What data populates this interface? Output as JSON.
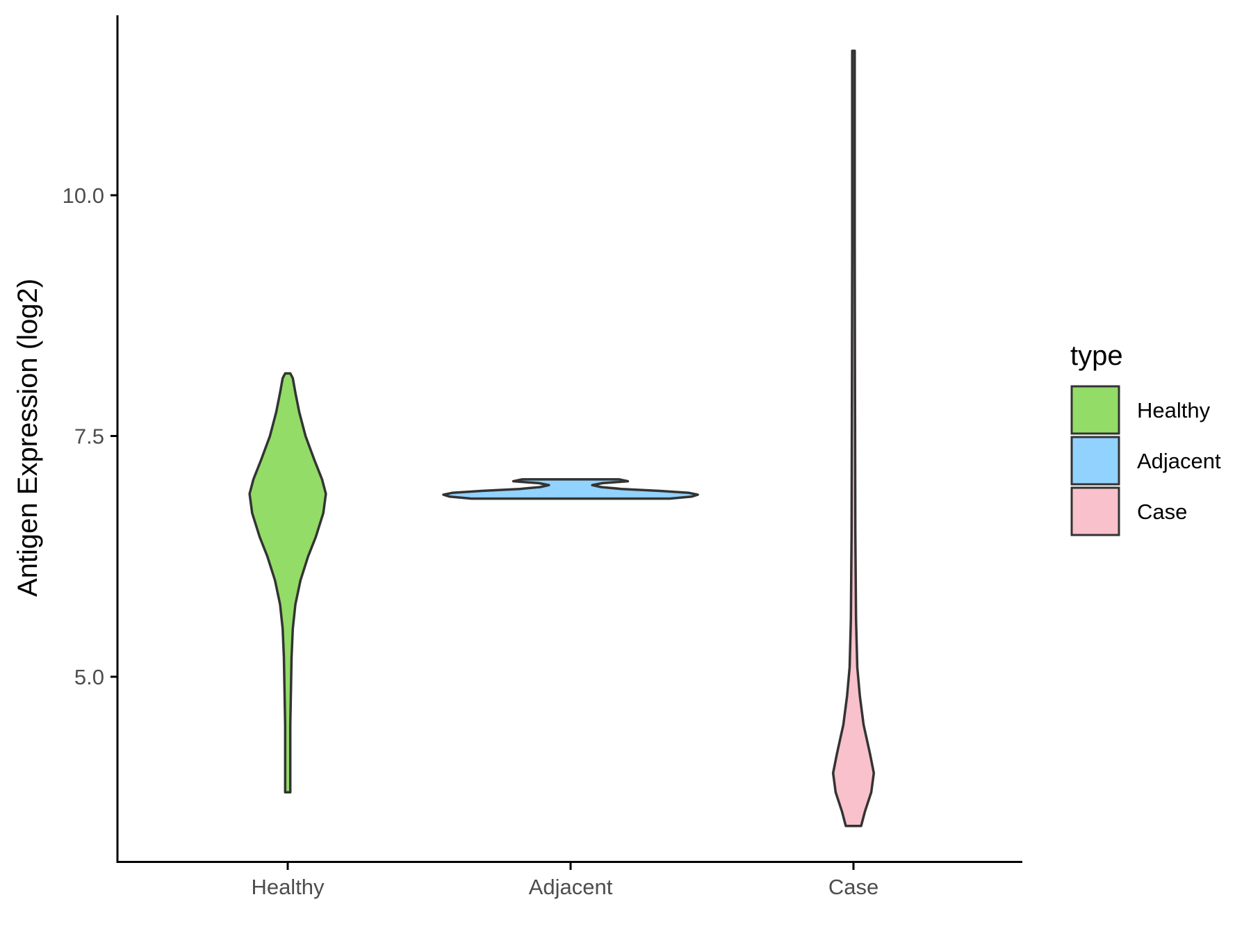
{
  "chart_data": {
    "type": "violin",
    "ylabel": "Antigen Expression (log2)",
    "ylim": [
      3.1,
      11.9
    ],
    "yticks": [
      5.0,
      7.5,
      10.0
    ],
    "ytick_labels": [
      "5.0",
      "7.5",
      "10.0"
    ],
    "categories": [
      "Healthy",
      "Adjacent",
      "Case"
    ],
    "grid": false,
    "legend": {
      "title": "type",
      "position": "right",
      "entries": [
        "Healthy",
        "Adjacent",
        "Case"
      ]
    },
    "series": [
      {
        "category": "Healthy",
        "color": "#93dc67",
        "min": 3.8,
        "max": 8.15,
        "density_profile": [
          [
            3.8,
            0.02
          ],
          [
            4.5,
            0.02
          ],
          [
            5.2,
            0.03
          ],
          [
            5.5,
            0.04
          ],
          [
            5.75,
            0.06
          ],
          [
            6.0,
            0.1
          ],
          [
            6.25,
            0.16
          ],
          [
            6.45,
            0.22
          ],
          [
            6.7,
            0.28
          ],
          [
            6.9,
            0.3
          ],
          [
            7.05,
            0.27
          ],
          [
            7.25,
            0.21
          ],
          [
            7.5,
            0.14
          ],
          [
            7.75,
            0.09
          ],
          [
            7.95,
            0.06
          ],
          [
            8.1,
            0.04
          ],
          [
            8.15,
            0.02
          ]
        ]
      },
      {
        "category": "Adjacent",
        "color": "#92d2fe",
        "min": 6.85,
        "max": 7.05,
        "density_profile": [
          [
            6.85,
            0.78
          ],
          [
            6.87,
            0.95
          ],
          [
            6.89,
            1.0
          ],
          [
            6.91,
            0.93
          ],
          [
            6.93,
            0.7
          ],
          [
            6.95,
            0.4
          ],
          [
            6.97,
            0.24
          ],
          [
            6.99,
            0.17
          ],
          [
            7.01,
            0.25
          ],
          [
            7.03,
            0.45
          ],
          [
            7.05,
            0.38
          ]
        ]
      },
      {
        "category": "Case",
        "color": "#f8c1cb",
        "min": 3.45,
        "max": 11.5,
        "density_profile": [
          [
            3.45,
            0.06
          ],
          [
            3.6,
            0.09
          ],
          [
            3.8,
            0.14
          ],
          [
            4.0,
            0.16
          ],
          [
            4.2,
            0.13
          ],
          [
            4.5,
            0.08
          ],
          [
            4.8,
            0.05
          ],
          [
            5.1,
            0.03
          ],
          [
            5.6,
            0.02
          ],
          [
            6.5,
            0.015
          ],
          [
            8.0,
            0.012
          ],
          [
            9.5,
            0.01
          ],
          [
            11.5,
            0.01
          ]
        ]
      }
    ]
  }
}
